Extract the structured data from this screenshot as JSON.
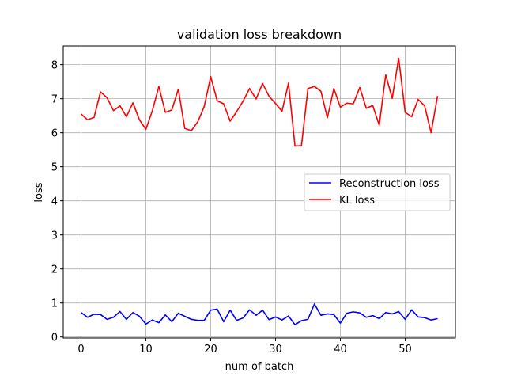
{
  "chart_data": {
    "type": "line",
    "title": "validation loss breakdown",
    "xlabel": "num of batch",
    "ylabel": "loss",
    "xlim": [
      -2.75,
      57.75
    ],
    "ylim": [
      -0.03,
      8.55
    ],
    "xticks": [
      0,
      10,
      20,
      30,
      40,
      50
    ],
    "yticks": [
      0,
      1,
      2,
      3,
      4,
      5,
      6,
      7,
      8
    ],
    "grid": true,
    "legend_position": "center-right",
    "x": [
      0,
      1,
      2,
      3,
      4,
      5,
      6,
      7,
      8,
      9,
      10,
      11,
      12,
      13,
      14,
      15,
      16,
      17,
      18,
      19,
      20,
      21,
      22,
      23,
      24,
      25,
      26,
      27,
      28,
      29,
      30,
      31,
      32,
      33,
      34,
      35,
      36,
      37,
      38,
      39,
      40,
      41,
      42,
      43,
      44,
      45,
      46,
      47,
      48,
      49,
      50,
      51,
      52,
      53,
      54,
      55
    ],
    "series": [
      {
        "name": "Reconstruction loss",
        "color": "#0000ff",
        "values": [
          0.72,
          0.58,
          0.67,
          0.66,
          0.52,
          0.58,
          0.75,
          0.52,
          0.72,
          0.61,
          0.38,
          0.5,
          0.42,
          0.65,
          0.45,
          0.7,
          0.61,
          0.52,
          0.49,
          0.49,
          0.79,
          0.82,
          0.45,
          0.79,
          0.49,
          0.56,
          0.8,
          0.64,
          0.79,
          0.51,
          0.59,
          0.5,
          0.62,
          0.36,
          0.48,
          0.52,
          0.97,
          0.64,
          0.68,
          0.66,
          0.41,
          0.7,
          0.74,
          0.71,
          0.58,
          0.63,
          0.54,
          0.72,
          0.68,
          0.75,
          0.52,
          0.8,
          0.59,
          0.57,
          0.5,
          0.54
        ]
      },
      {
        "name": "KL loss",
        "color": "#ff0000",
        "values": [
          6.55,
          6.38,
          6.45,
          7.2,
          7.03,
          6.65,
          6.79,
          6.47,
          6.88,
          6.38,
          6.1,
          6.65,
          7.36,
          6.6,
          6.67,
          7.28,
          6.13,
          6.06,
          6.32,
          6.77,
          7.65,
          6.94,
          6.85,
          6.34,
          6.62,
          6.93,
          7.3,
          6.99,
          7.45,
          7.07,
          6.86,
          6.63,
          7.46,
          5.61,
          5.62,
          7.3,
          7.36,
          7.22,
          6.44,
          7.3,
          6.75,
          6.87,
          6.85,
          7.33,
          6.72,
          6.8,
          6.22,
          7.7,
          7.01,
          8.19,
          6.6,
          6.47,
          6.98,
          6.79,
          6.0,
          7.08
        ]
      }
    ]
  }
}
